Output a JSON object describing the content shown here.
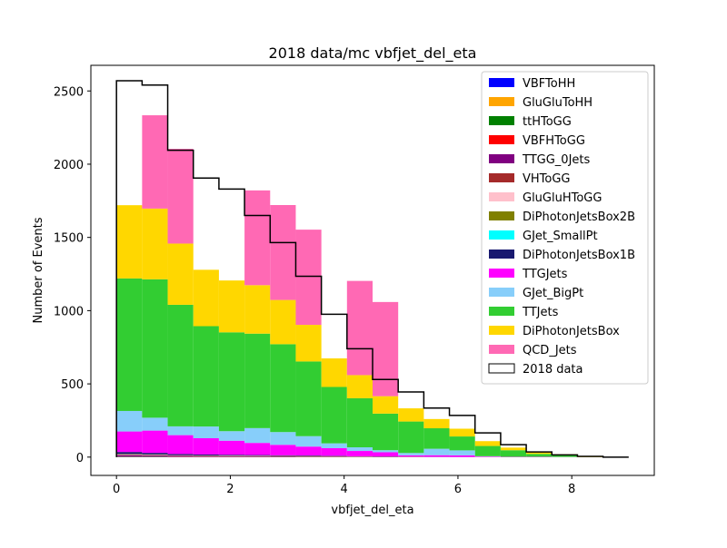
{
  "chart_data": {
    "type": "bar",
    "title": "2018 data/mc vbfjet_del_eta",
    "xlabel": "vbfjet_del_eta",
    "ylabel": "Number of Events",
    "xlim": [
      -0.45,
      9.45
    ],
    "ylim": [
      -125,
      2675
    ],
    "xticks": [
      0,
      2,
      4,
      6,
      8
    ],
    "yticks": [
      0,
      500,
      1000,
      1500,
      2000,
      2500
    ],
    "legend_position": "upper right",
    "grid": false,
    "bin_edges": [
      0,
      0.45,
      0.9,
      1.35,
      1.8,
      2.25,
      2.7,
      3.15,
      3.6,
      4.05,
      4.5,
      4.95,
      5.4,
      5.85,
      6.3,
      6.75,
      7.2,
      7.65,
      8.1,
      8.55,
      9.0
    ],
    "series": [
      {
        "name": "VBFToHH",
        "color": "#0000ff",
        "values": [
          0,
          0,
          0,
          0,
          0,
          0,
          0,
          0,
          0,
          0,
          0,
          0,
          0,
          0,
          0,
          0,
          0,
          0,
          0,
          0
        ]
      },
      {
        "name": "GluGluToHH",
        "color": "#ffa500",
        "values": [
          0,
          0,
          0,
          0,
          0,
          0,
          0,
          0,
          0,
          0,
          0,
          0,
          0,
          0,
          0,
          0,
          0,
          0,
          0,
          0
        ]
      },
      {
        "name": "ttHToGG",
        "color": "#008000",
        "values": [
          2,
          2,
          1,
          1,
          1,
          1,
          1,
          1,
          1,
          1,
          0,
          0,
          0,
          0,
          0,
          0,
          0,
          0,
          0,
          0
        ]
      },
      {
        "name": "VBFHToGG",
        "color": "#ff0000",
        "values": [
          1,
          1,
          1,
          1,
          1,
          1,
          1,
          1,
          1,
          1,
          1,
          1,
          0,
          0,
          0,
          0,
          0,
          0,
          0,
          0
        ]
      },
      {
        "name": "TTGG_0Jets",
        "color": "#800080",
        "values": [
          10,
          8,
          6,
          5,
          4,
          3,
          3,
          2,
          2,
          1,
          1,
          1,
          0,
          0,
          0,
          0,
          0,
          0,
          0,
          0
        ]
      },
      {
        "name": "VHToGG",
        "color": "#a52a2a",
        "values": [
          3,
          2,
          2,
          1,
          1,
          1,
          1,
          1,
          1,
          0,
          0,
          0,
          0,
          0,
          0,
          0,
          0,
          0,
          0,
          0
        ]
      },
      {
        "name": "GluGluHToGG",
        "color": "#ffc0cb",
        "values": [
          3,
          3,
          2,
          2,
          2,
          2,
          1,
          1,
          1,
          1,
          1,
          1,
          1,
          0,
          0,
          0,
          0,
          0,
          0,
          0
        ]
      },
      {
        "name": "DiPhotonJetsBox2B",
        "color": "#808000",
        "values": [
          2,
          2,
          1,
          1,
          1,
          1,
          1,
          1,
          0,
          0,
          0,
          0,
          0,
          0,
          0,
          0,
          0,
          0,
          0,
          0
        ]
      },
      {
        "name": "GJet_SmallPt",
        "color": "#00ffff",
        "values": [
          0,
          0,
          0,
          0,
          0,
          0,
          0,
          0,
          0,
          0,
          0,
          0,
          0,
          0,
          0,
          0,
          0,
          0,
          0,
          0
        ]
      },
      {
        "name": "DiPhotonJetsBox1B",
        "color": "#191970",
        "values": [
          14,
          11,
          8,
          7,
          6,
          5,
          4,
          4,
          3,
          2,
          2,
          1,
          1,
          1,
          0,
          0,
          0,
          0,
          0,
          0
        ]
      },
      {
        "name": "TTGJets",
        "color": "#ff00ff",
        "values": [
          140,
          152,
          129,
          111,
          96,
          83,
          72,
          61,
          52,
          36,
          28,
          8,
          11,
          11,
          4,
          2,
          2,
          1,
          0,
          0
        ]
      },
      {
        "name": "GJet_BigPt",
        "color": "#87cefa",
        "values": [
          140,
          88,
          60,
          80,
          65,
          101,
          87,
          71,
          33,
          25,
          14,
          16,
          44,
          34,
          2,
          0,
          0,
          0,
          0,
          0
        ]
      },
      {
        "name": "TTJets",
        "color": "#32cd32",
        "values": [
          905,
          945,
          830,
          685,
          675,
          645,
          600,
          510,
          385,
          335,
          250,
          215,
          140,
          95,
          70,
          45,
          20,
          12,
          0,
          0
        ]
      },
      {
        "name": "DiPhotonJetsBox",
        "color": "#ffd700",
        "values": [
          500,
          483,
          418,
          385,
          354,
          331,
          302,
          250,
          195,
          158,
          119,
          90,
          63,
          53,
          33,
          18,
          12,
          6,
          2,
          0
        ]
      },
      {
        "name": "QCD_Jets",
        "color": "#ff69b4",
        "values": [
          0,
          637,
          647,
          0,
          0,
          647,
          648,
          650,
          0,
          643,
          643,
          0,
          0,
          0,
          0,
          0,
          0,
          0,
          0,
          0
        ]
      }
    ],
    "data_series": {
      "name": "2018 data",
      "color": "#000000",
      "values": [
        2570,
        2540,
        2095,
        1905,
        1830,
        1650,
        1465,
        1235,
        975,
        740,
        530,
        445,
        335,
        285,
        165,
        85,
        35,
        15,
        5,
        0
      ]
    }
  }
}
